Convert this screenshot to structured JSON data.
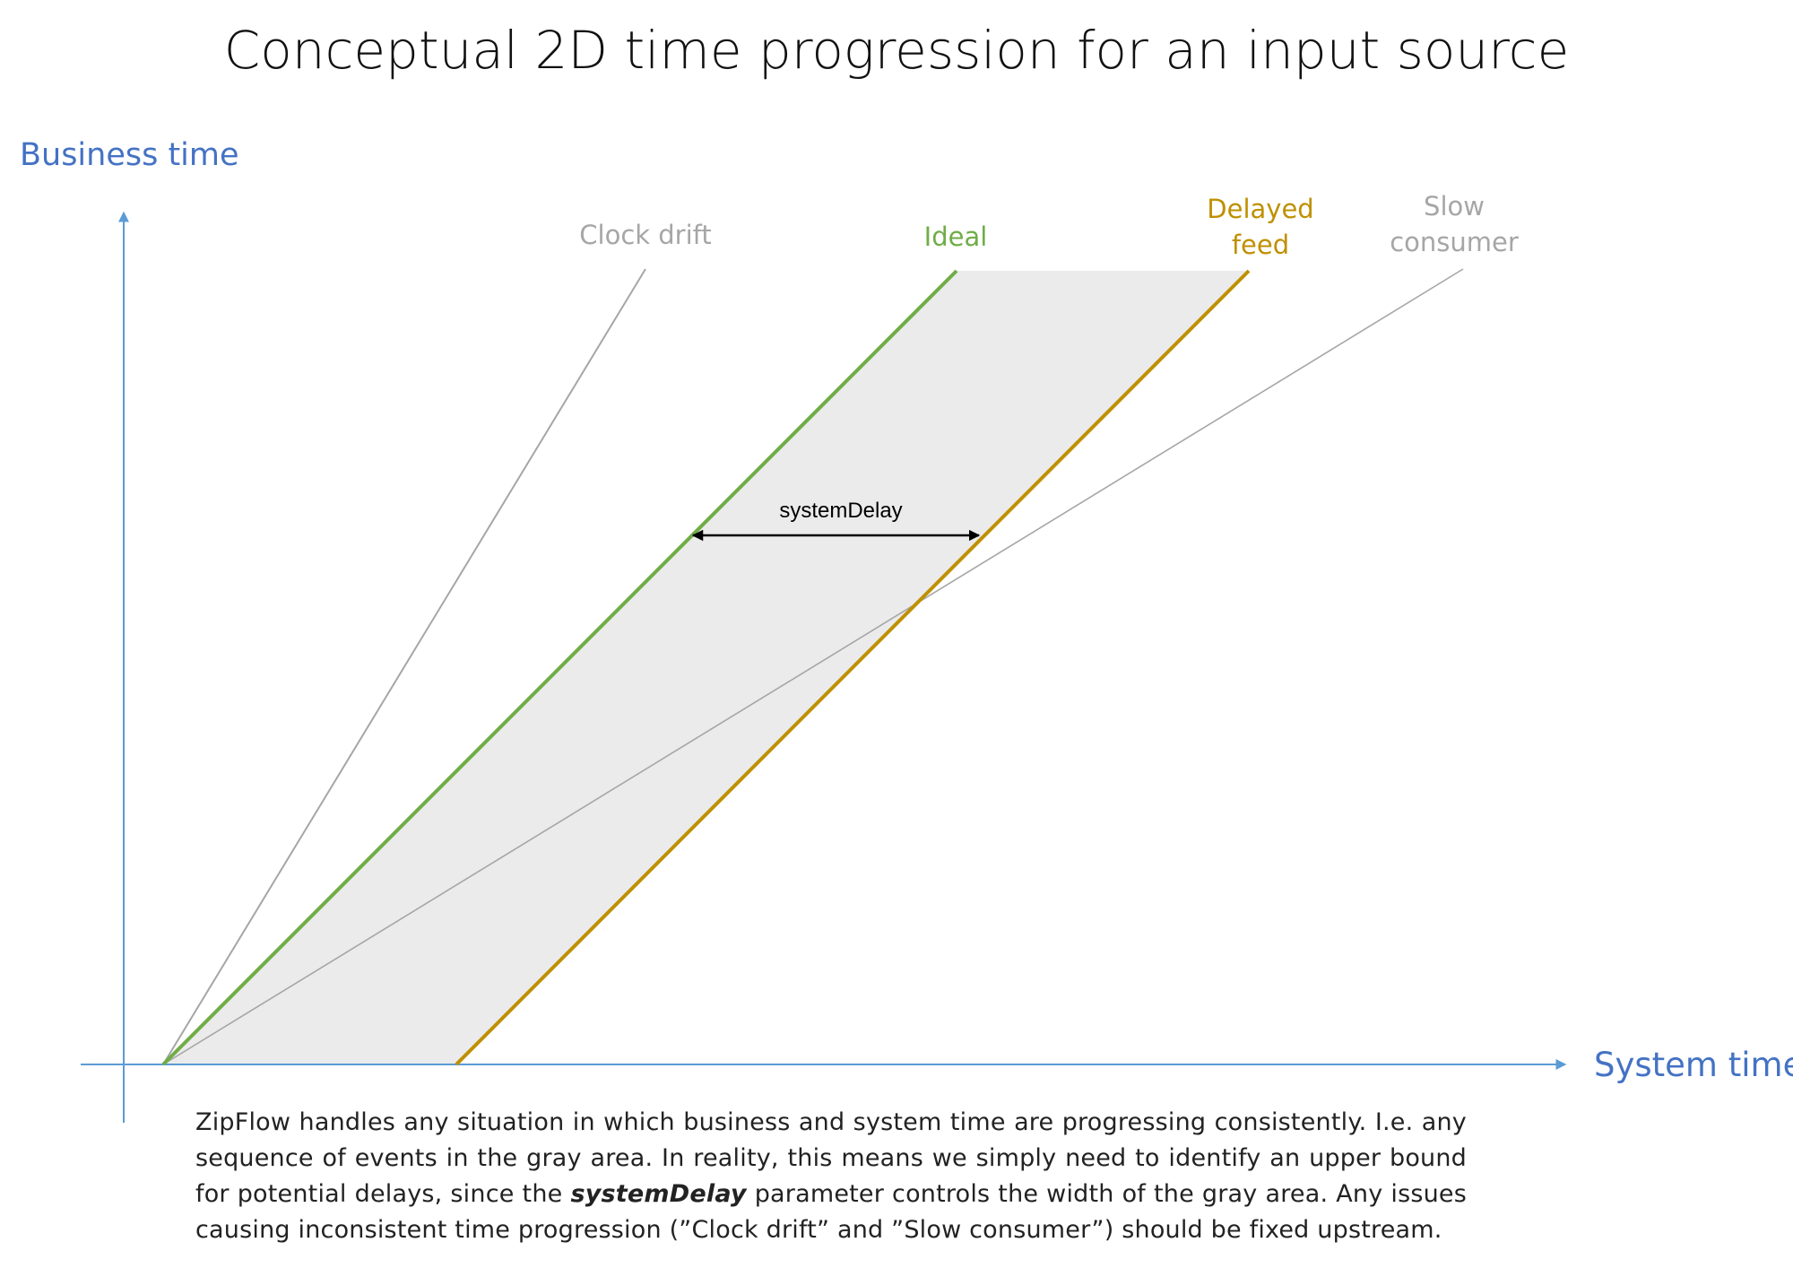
{
  "title": "Conceptual 2D time progression for an input source",
  "axes": {
    "y_label": "Business time",
    "x_label": "System time",
    "color": "#4472C4",
    "axis_line_color": "#5B9BD5"
  },
  "series": {
    "clock_drift": {
      "label": "Clock drift",
      "color": "#A6A6A6"
    },
    "ideal": {
      "label": "Ideal",
      "color": "#70AD47"
    },
    "delayed_feed": {
      "label_line1": "Delayed",
      "label_line2": "feed",
      "color": "#BF9000"
    },
    "slow_consumer": {
      "label_line1": "Slow",
      "label_line2": "consumer",
      "color": "#A6A6A6"
    }
  },
  "gray_area_color": "#EBEBEB",
  "delay_marker": {
    "label": "systemDelay",
    "color": "#000000"
  },
  "caption": {
    "part1": "ZipFlow handles any situation in which business and system time are progressing consistently. I.e. any sequence of events in the gray area. In reality, this means we simply need to identify an upper bound for potential delays, since the ",
    "keyword": "systemDelay",
    "part2": " parameter controls the width of the gray area. Any issues causing inconsistent time progression (”Clock drift” and ”Slow consumer”) should be fixed upstream."
  }
}
